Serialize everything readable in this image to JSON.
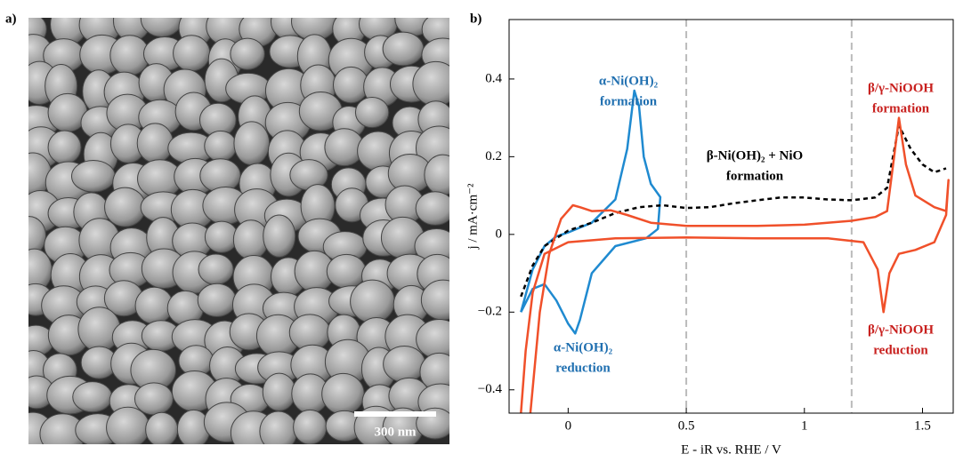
{
  "panel_labels": [
    "a)",
    "b)"
  ],
  "sem_image": {
    "scale_bar_label": "300 nm"
  },
  "chart_data": {
    "type": "line",
    "xlabel": "E - iR vs. RHE / V",
    "ylabel": "j / mA·cm⁻²",
    "xlim": [
      -0.25,
      1.63
    ],
    "ylim": [
      -0.46,
      0.553
    ],
    "xticks": [
      0,
      0.5,
      1,
      1.5
    ],
    "yticks": [
      {
        "value": -0.4,
        "label": "−0.4"
      },
      {
        "value": -0.2,
        "label": "−0.2"
      },
      0,
      0.2,
      0.4
    ],
    "grid": false,
    "vlines": [
      0.5,
      1.2
    ],
    "series": [
      {
        "color": "#1f8ad0",
        "dash": false,
        "x": [
          -0.2,
          -0.15,
          -0.1,
          -0.05,
          0,
          0.1,
          0.2,
          0.25,
          0.28,
          0.3,
          0.32,
          0.35,
          0.39,
          0.38,
          0.33,
          0.2,
          0.1,
          0.05,
          0.03,
          0,
          -0.05,
          -0.1,
          -0.15,
          -0.2
        ],
        "values": [
          -0.2,
          -0.09,
          -0.03,
          -0.005,
          0.005,
          0.03,
          0.09,
          0.22,
          0.37,
          0.33,
          0.2,
          0.13,
          0.096,
          0.014,
          -0.01,
          -0.03,
          -0.1,
          -0.22,
          -0.255,
          -0.23,
          -0.17,
          -0.128,
          -0.14,
          -0.2
        ]
      },
      {
        "color": "#000000",
        "dash": true,
        "x": [
          -0.2,
          -0.15,
          -0.1,
          0,
          0.1,
          0.2,
          0.3,
          0.4,
          0.5,
          0.6,
          0.7,
          0.8,
          0.9,
          1.0,
          1.1,
          1.2,
          1.3,
          1.35,
          1.4,
          1.45,
          1.5,
          1.55,
          1.6
        ],
        "values": [
          -0.16,
          -0.08,
          -0.03,
          0.01,
          0.03,
          0.055,
          0.07,
          0.075,
          0.068,
          0.07,
          0.08,
          0.088,
          0.095,
          0.095,
          0.09,
          0.088,
          0.095,
          0.12,
          0.28,
          0.22,
          0.18,
          0.16,
          0.17
        ]
      },
      {
        "color": "#f0502a",
        "dash": false,
        "x": [
          -0.16,
          -0.12,
          -0.08,
          -0.03,
          0.02,
          0.05,
          0.1,
          0.18,
          0.25,
          0.35,
          0.5,
          0.8,
          1.0,
          1.2,
          1.3,
          1.35,
          1.38,
          1.4,
          1.43,
          1.47,
          1.55,
          1.6,
          1.61,
          1.6,
          1.55,
          1.47,
          1.4,
          1.36,
          1.335,
          1.31,
          1.25,
          1.1,
          0.8,
          0.5,
          0.2,
          0,
          -0.1,
          -0.15,
          -0.18,
          -0.2
        ],
        "values": [
          -0.46,
          -0.2,
          -0.05,
          0.04,
          0.075,
          0.07,
          0.06,
          0.062,
          0.05,
          0.03,
          0.022,
          0.022,
          0.025,
          0.035,
          0.045,
          0.06,
          0.2,
          0.3,
          0.18,
          0.1,
          0.07,
          0.06,
          0.14,
          0.05,
          -0.02,
          -0.04,
          -0.05,
          -0.1,
          -0.2,
          -0.09,
          -0.02,
          -0.01,
          -0.01,
          -0.008,
          -0.01,
          -0.02,
          -0.05,
          -0.15,
          -0.3,
          -0.46
        ]
      }
    ],
    "annotations": [
      {
        "lines": [
          "α-Ni(OH)₂",
          "formation"
        ],
        "color": "#1f6fb0"
      },
      {
        "lines": [
          "β-Ni(OH)₂ + NiO",
          "formation"
        ],
        "color": "#000000"
      },
      {
        "lines": [
          "β/γ-NiOOH",
          "formation"
        ],
        "color": "#c8201e"
      },
      {
        "lines": [
          "β/γ-NiOOH",
          "reduction"
        ],
        "color": "#c8201e"
      },
      {
        "lines": [
          "α-Ni(OH)₂",
          "reduction"
        ],
        "color": "#1f6fb0"
      }
    ]
  }
}
